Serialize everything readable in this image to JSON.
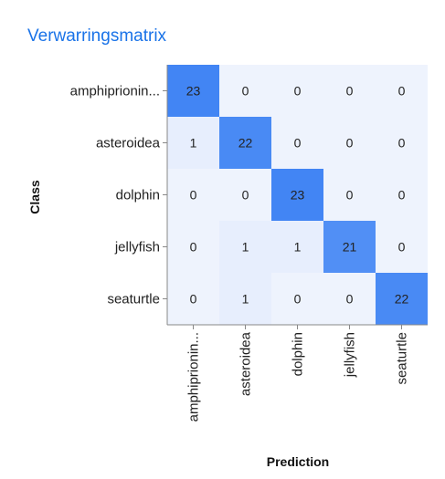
{
  "title": "Verwarringsmatrix",
  "colors": {
    "title": "#1a73e8",
    "max_cell": "#4285f4",
    "min_cell": "#eef3fd",
    "grid": "#888888",
    "text": "#222222"
  },
  "chart_data": {
    "type": "heatmap",
    "rows": [
      "amphiprionin...",
      "asteroidea",
      "dolphin",
      "jellyfish",
      "seaturtle"
    ],
    "columns": [
      "amphiprionin...",
      "asteroidea",
      "dolphin",
      "jellyfish",
      "seaturtle"
    ],
    "values": [
      [
        23,
        0,
        0,
        0,
        0
      ],
      [
        1,
        22,
        0,
        0,
        0
      ],
      [
        0,
        0,
        23,
        0,
        0
      ],
      [
        0,
        1,
        1,
        21,
        0
      ],
      [
        0,
        1,
        0,
        0,
        22
      ]
    ],
    "xlabel": "Prediction",
    "ylabel": "Class"
  }
}
